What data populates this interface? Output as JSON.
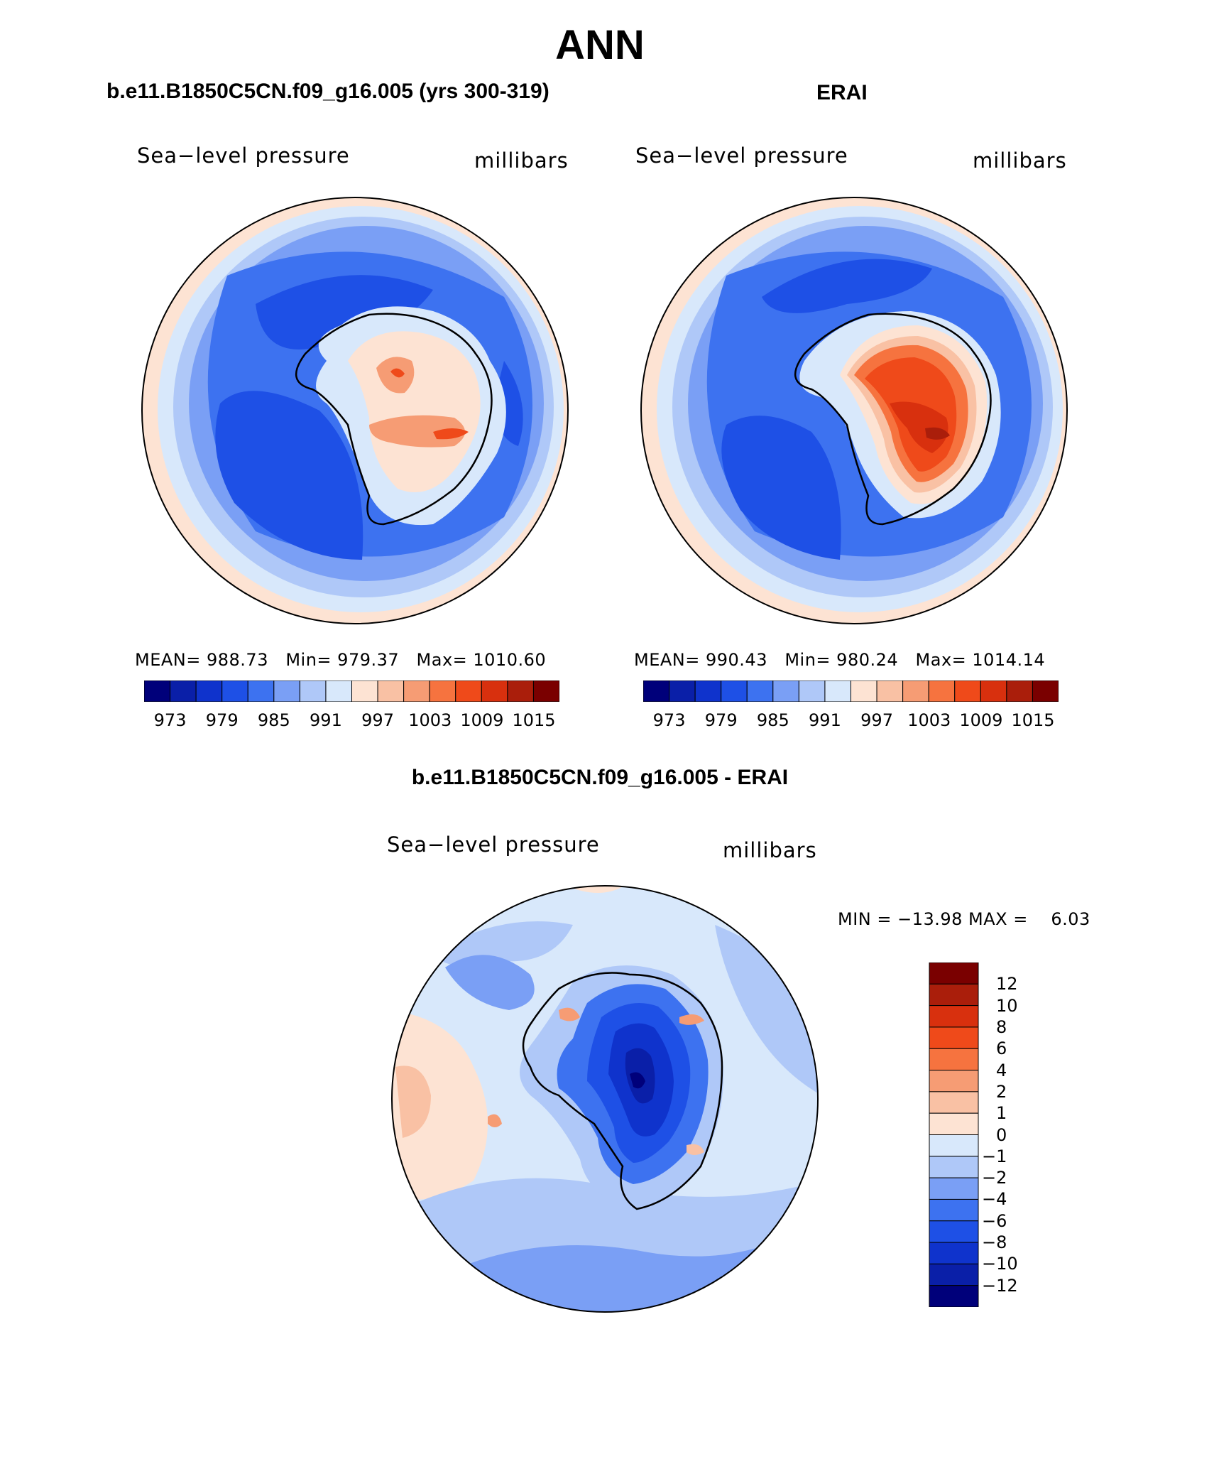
{
  "figure": {
    "title": "ANN",
    "left_title": "b.e11.B1850C5CN.f09_g16.005 (yrs 300-319)",
    "right_title": "ERAI",
    "diff_title": "b.e11.B1850C5CN.f09_g16.005 - ERAI"
  },
  "panels": [
    {
      "variable": "Sea−level pressure",
      "units": "millibars",
      "stats": "MEAN= 988.73   Min= 979.37   Max= 1010.60",
      "colorbar_ticks": [
        "973",
        "979",
        "985",
        "991",
        "997",
        "1003",
        "1009",
        "1015"
      ]
    },
    {
      "variable": "Sea−level pressure",
      "units": "millibars",
      "stats": "MEAN= 990.43   Min= 980.24   Max= 1014.14",
      "colorbar_ticks": [
        "973",
        "979",
        "985",
        "991",
        "997",
        "1003",
        "1009",
        "1015"
      ]
    },
    {
      "variable": "Sea−level pressure",
      "units": "millibars",
      "stats": "MIN = −13.98 MAX =    6.03",
      "colorbar_ticks": [
        "12",
        "10",
        "8",
        "6",
        "4",
        "2",
        "1",
        "0",
        "−1",
        "−2",
        "−4",
        "−6",
        "−8",
        "−10",
        "−12"
      ]
    }
  ],
  "colors": {
    "abs_scale": [
      "#00007a",
      "#0a1fa8",
      "#0f33cc",
      "#1e50e6",
      "#3d72f0",
      "#7a9ff5",
      "#afc8f8",
      "#d8e8fb",
      "#fde3d3",
      "#f9c1a4",
      "#f69c74",
      "#f6733f",
      "#ef4a1a",
      "#d8300e",
      "#aa1e0b",
      "#7a0000"
    ],
    "diff_scale": [
      "#7a0000",
      "#aa1e0b",
      "#d8300e",
      "#ef4a1a",
      "#f6733f",
      "#f69c74",
      "#f9c1a4",
      "#fde3d3",
      "#d8e8fb",
      "#afc8f8",
      "#7a9ff5",
      "#3d72f0",
      "#1e50e6",
      "#0f33cc",
      "#0a1fa8",
      "#00007a"
    ]
  }
}
